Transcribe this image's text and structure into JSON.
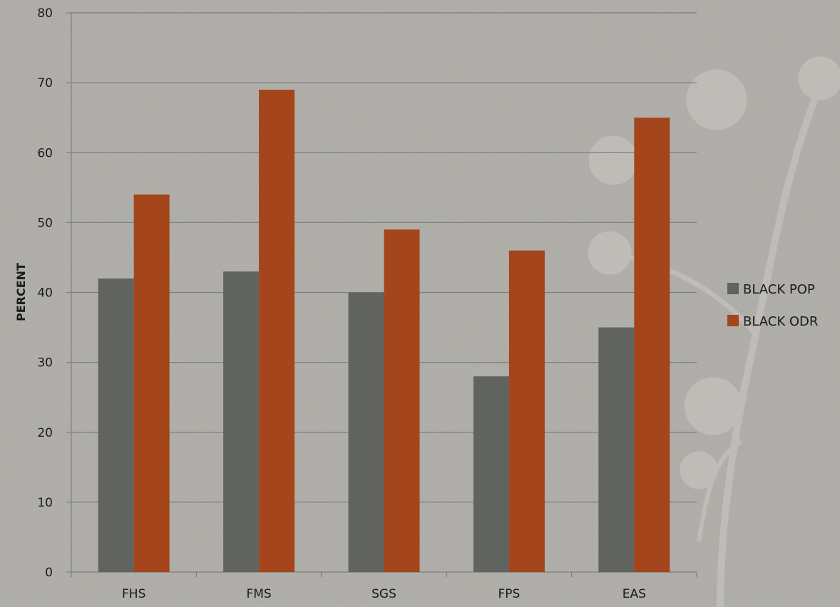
{
  "chart_data": {
    "type": "bar",
    "title": "",
    "xlabel": "",
    "ylabel": "PERCENT",
    "categories": [
      "FHS",
      "FMS",
      "SGS",
      "FPS",
      "EAS"
    ],
    "series": [
      {
        "name": "BLACK POP",
        "values": [
          42,
          43,
          40,
          28,
          35
        ],
        "color": "#616360"
      },
      {
        "name": "BLACK ODR",
        "values": [
          54,
          69,
          49,
          46,
          65
        ],
        "color": "#a4451b"
      }
    ],
    "ylim": [
      0,
      80
    ],
    "yticks": [
      0,
      10,
      20,
      30,
      40,
      50,
      60,
      70,
      80
    ],
    "grid": true,
    "legend": "right",
    "background_color": "#b3b1ac",
    "gridline_color": "#7f7f7f"
  }
}
